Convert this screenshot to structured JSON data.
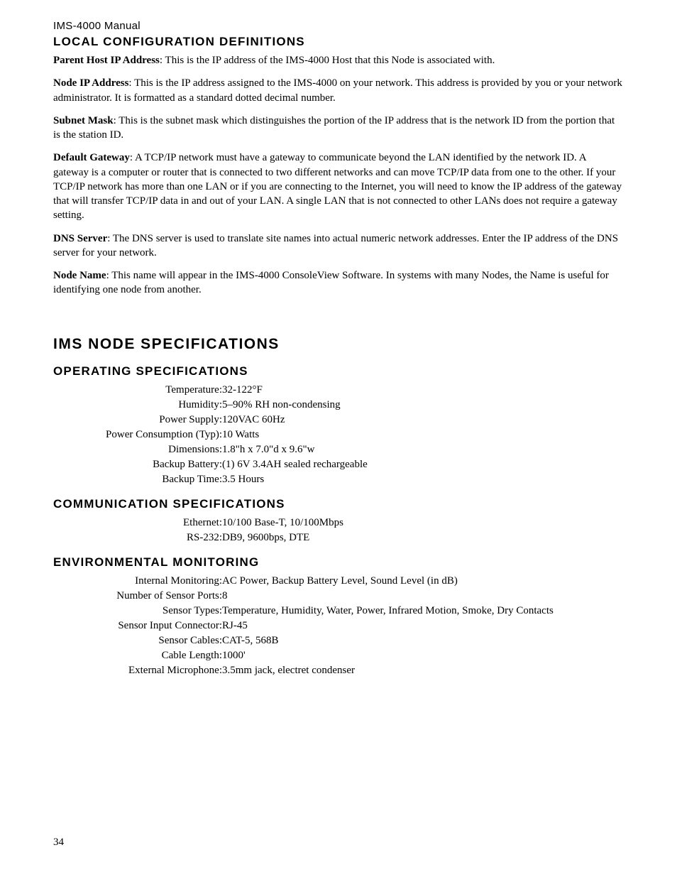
{
  "header": {
    "manual_title": "IMS-4000 Manual"
  },
  "section_local": {
    "heading": "LOCAL CONFIGURATION DEFINITIONS",
    "definitions": [
      {
        "term": "Parent Host IP Address",
        "text": ": This is the IP address of the IMS-4000 Host that this Node is associated with."
      },
      {
        "term": "Node IP Address",
        "text": ": This is the IP address assigned to the IMS-4000 on your network. This address is provided by you or your network administrator. It is formatted as a standard dotted decimal number."
      },
      {
        "term": "Subnet Mask",
        "text": ": This is the subnet mask which distinguishes the portion of the IP address that is the network ID from the portion that is the station ID."
      },
      {
        "term": "Default Gateway",
        "text": ": A TCP/IP network must have a gateway to communicate beyond the LAN identified by the network ID. A gateway is a computer or router that is connected to two different networks and can move TCP/IP data from one to the other. If your TCP/IP network has more than one LAN or if you are connecting to the Internet, you will need to know the IP address of the gateway that will transfer TCP/IP data in and out of your LAN. A single LAN that is not connected to other LANs does not require a gateway setting."
      },
      {
        "term": "DNS Server",
        "text": ": The DNS server is used to translate site names into actual numeric network addresses. Enter the IP address of the DNS server for your network."
      },
      {
        "term": "Node Name",
        "text": ": This name will appear in the IMS-4000 ConsoleView Software. In systems with many Nodes, the Name is useful for identifying one node from another."
      }
    ]
  },
  "section_specs": {
    "heading": "IMS NODE SPECIFICATIONS",
    "subsections": [
      {
        "heading": "OPERATING SPECIFICATIONS",
        "rows": [
          {
            "label": "Temperature:",
            "value": "32-122°F"
          },
          {
            "label": "Humidity:",
            "value": "5–90% RH non-condensing"
          },
          {
            "label": "Power Supply:",
            "value": "120VAC 60Hz"
          },
          {
            "label": "Power Consumption (Typ):",
            "value": "10 Watts"
          },
          {
            "label": "Dimensions:",
            "value": "1.8\"h x 7.0\"d x 9.6\"w"
          },
          {
            "label": "Backup Battery:",
            "value": "(1) 6V 3.4AH sealed rechargeable"
          },
          {
            "label": "Backup Time:",
            "value": "3.5 Hours"
          }
        ]
      },
      {
        "heading": "COMMUNICATION SPECIFICATIONS",
        "rows": [
          {
            "label": "Ethernet:",
            "value": "10/100 Base-T, 10/100Mbps"
          },
          {
            "label": "RS-232:",
            "value": "DB9, 9600bps, DTE"
          }
        ]
      },
      {
        "heading": "ENVIRONMENTAL MONITORING",
        "rows": [
          {
            "label": "Internal Monitoring:",
            "value": "AC Power, Backup Battery Level, Sound Level (in dB)"
          },
          {
            "label": "Number of Sensor Ports:",
            "value": "8"
          },
          {
            "label": "Sensor Types:",
            "value": "Temperature, Humidity, Water, Power, Infrared Motion, Smoke, Dry Contacts"
          },
          {
            "label": "Sensor Input Connector:",
            "value": "RJ-45"
          },
          {
            "label": "Sensor Cables:",
            "value": "CAT-5, 568B"
          },
          {
            "label": "Cable Length:",
            "value": "1000'"
          },
          {
            "label": "External Microphone:",
            "value": "3.5mm jack, electret condenser"
          }
        ]
      }
    ]
  },
  "page_number": "34"
}
